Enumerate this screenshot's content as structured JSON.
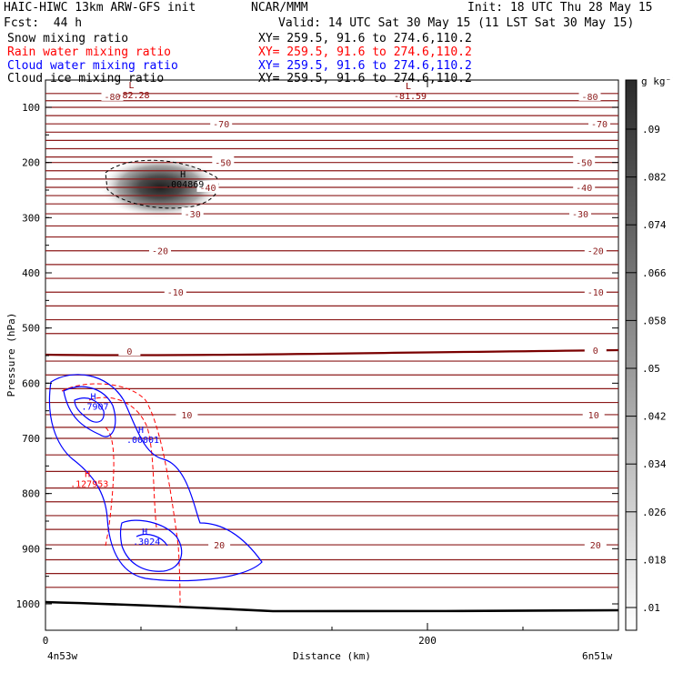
{
  "header": {
    "model": "HAIC-HIWC 13km ARW-GFS init",
    "org": "NCAR/MMM",
    "init": "Init: 18 UTC Thu 28 May 15",
    "fcst": "Fcst:  44 h",
    "valid": "Valid: 14 UTC Sat 30 May 15 (11 LST Sat 30 May 15)",
    "rows": [
      {
        "label": "Snow mixing ratio",
        "xy": "XY= 259.5, 91.6 to 274.6,110.2",
        "color": "#000000"
      },
      {
        "label": "Rain water mixing ratio",
        "xy": "XY= 259.5, 91.6 to 274.6,110.2",
        "color": "#ff0000"
      },
      {
        "label": "Cloud water mixing ratio",
        "xy": "XY= 259.5, 91.6 to 274.6,110.2",
        "color": "#0000ff"
      },
      {
        "label": "Cloud ice mixing ratio",
        "xy": "XY= 259.5, 91.6 to 274.6,110.2",
        "color": "#000000"
      }
    ]
  },
  "chart_data": {
    "type": "contour",
    "xlabel": "Distance (km)",
    "ylabel": "Pressure (hPa)",
    "xlim": [
      0,
      300
    ],
    "ylim": [
      1050,
      50
    ],
    "x_ticks": [
      0,
      200
    ],
    "y_ticks": [
      100,
      200,
      300,
      400,
      500,
      600,
      700,
      800,
      900,
      1000
    ],
    "x_endpoints": {
      "left": "4n53w",
      "right": "6n51w"
    },
    "colorbar": {
      "unit": "g kg⁻¹",
      "levels": [
        ".09",
        ".082",
        ".074",
        ".066",
        ".058",
        ".05",
        ".042",
        ".034",
        ".026",
        ".018",
        ".01"
      ]
    },
    "temperature_labels": [
      {
        "text": "-80",
        "x": 35,
        "p": 80
      },
      {
        "text": "-80",
        "x": 285,
        "p": 80
      },
      {
        "text": "-70",
        "x": 92,
        "p": 130
      },
      {
        "text": "-70",
        "x": 290,
        "p": 130
      },
      {
        "text": "-50",
        "x": 93,
        "p": 200
      },
      {
        "text": "-50",
        "x": 282,
        "p": 200
      },
      {
        "text": "-40",
        "x": 85,
        "p": 245
      },
      {
        "text": "-40",
        "x": 282,
        "p": 245
      },
      {
        "text": "-30",
        "x": 77,
        "p": 293
      },
      {
        "text": "-30",
        "x": 280,
        "p": 293
      },
      {
        "text": "-20",
        "x": 60,
        "p": 360
      },
      {
        "text": "-20",
        "x": 288,
        "p": 360
      },
      {
        "text": "-10",
        "x": 68,
        "p": 435
      },
      {
        "text": "-10",
        "x": 288,
        "p": 435
      },
      {
        "text": "0",
        "x": 44,
        "p": 542
      },
      {
        "text": "0",
        "x": 288,
        "p": 540
      },
      {
        "text": "10",
        "x": 74,
        "p": 657
      },
      {
        "text": "10",
        "x": 287,
        "p": 657
      },
      {
        "text": "20",
        "x": 91,
        "p": 893
      },
      {
        "text": "20",
        "x": 288,
        "p": 893
      }
    ],
    "extrema_labels": [
      {
        "mark": "L",
        "value": "-82.28",
        "x": 45,
        "p": 65,
        "color": "#8b0000"
      },
      {
        "mark": "L",
        "value": "-81.59",
        "x": 190,
        "p": 67,
        "color": "#8b0000"
      },
      {
        "mark": "H",
        "value": ".004869",
        "x": 72,
        "p": 227,
        "color": "#000000"
      },
      {
        "mark": "H",
        "value": ".7907",
        "x": 25,
        "p": 630,
        "color": "#0000ff"
      },
      {
        "mark": "H",
        "value": ".00001",
        "x": 50,
        "p": 690,
        "color": "#0000ff"
      },
      {
        "mark": "H",
        "value": ".127953",
        "x": 22,
        "p": 770,
        "color": "#ff0000"
      },
      {
        "mark": "H",
        "value": ".3024",
        "x": 52,
        "p": 875,
        "color": "#0000ff"
      }
    ]
  }
}
